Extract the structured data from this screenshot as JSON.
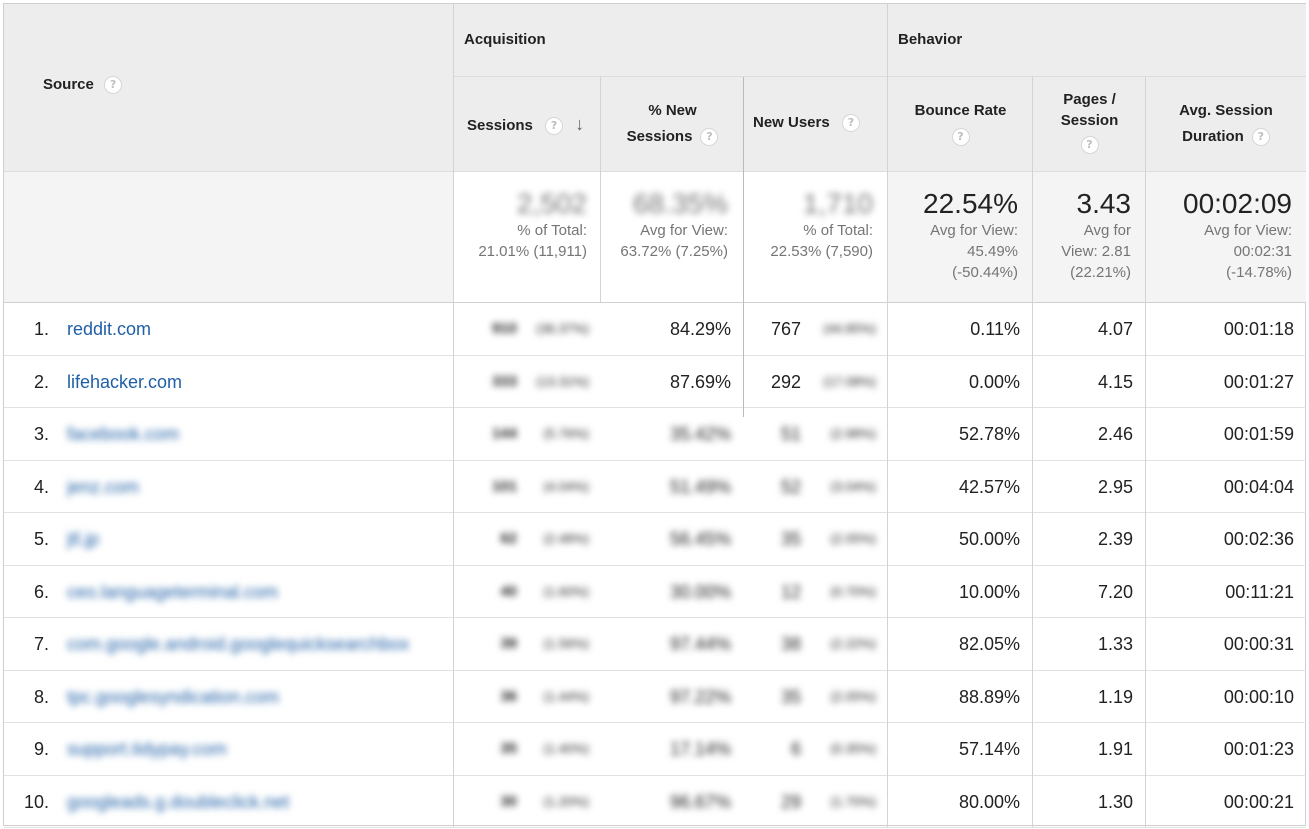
{
  "header": {
    "source_label": "Source",
    "acquisition_label": "Acquisition",
    "behavior_label": "Behavior",
    "help_glyph": "?",
    "sort_glyph": "↓",
    "columns": {
      "sessions": "Sessions",
      "new_sessions_line1": "% New",
      "new_sessions_line2": "Sessions",
      "new_users": "New Users",
      "bounce_rate": "Bounce Rate",
      "pages_line1": "Pages /",
      "pages_line2": "Session",
      "duration_line1": "Avg. Session",
      "duration_line2": "Duration"
    }
  },
  "totals": {
    "sessions": {
      "value": "2,502",
      "line1": "% of Total:",
      "line2": "21.01% (11,911)"
    },
    "new_sessions": {
      "value": "68.35%",
      "line1": "Avg for View:",
      "line2": "63.72% (7.25%)"
    },
    "new_users": {
      "value": "1,710",
      "line1": "% of Total:",
      "line2": "22.53% (7,590)"
    },
    "bounce_rate": {
      "value": "22.54%",
      "line1": "Avg for View:",
      "line2": "45.49%",
      "line3": "(-50.44%)"
    },
    "pages": {
      "value": "3.43",
      "line1": "Avg for",
      "line2": "View: 2.81",
      "line3": "(22.21%)"
    },
    "duration": {
      "value": "00:02:09",
      "line1": "Avg for View:",
      "line2": "00:02:31",
      "line3": "(-14.78%)"
    }
  },
  "rows": [
    {
      "num": "1.",
      "source": "reddit.com",
      "sessions": "910",
      "sessions_pct": "(36.37%)",
      "new_sessions": "84.29%",
      "new_users": "767",
      "new_users_pct": "(44.85%)",
      "bounce": "0.11%",
      "pages": "4.07",
      "duration": "00:01:18"
    },
    {
      "num": "2.",
      "source": "lifehacker.com",
      "sessions": "333",
      "sessions_pct": "(13.31%)",
      "new_sessions": "87.69%",
      "new_users": "292",
      "new_users_pct": "(17.08%)",
      "bounce": "0.00%",
      "pages": "4.15",
      "duration": "00:01:27"
    },
    {
      "num": "3.",
      "source": "facebook.com",
      "sessions": "144",
      "sessions_pct": "(5.76%)",
      "new_sessions": "35.42%",
      "new_users": "51",
      "new_users_pct": "(2.98%)",
      "bounce": "52.78%",
      "pages": "2.46",
      "duration": "00:01:59"
    },
    {
      "num": "4.",
      "source": "jenz.com",
      "sessions": "101",
      "sessions_pct": "(4.04%)",
      "new_sessions": "51.49%",
      "new_users": "52",
      "new_users_pct": "(3.04%)",
      "bounce": "42.57%",
      "pages": "2.95",
      "duration": "00:04:04"
    },
    {
      "num": "5.",
      "source": "jtl.jp",
      "sessions": "62",
      "sessions_pct": "(2.48%)",
      "new_sessions": "56.45%",
      "new_users": "35",
      "new_users_pct": "(2.05%)",
      "bounce": "50.00%",
      "pages": "2.39",
      "duration": "00:02:36"
    },
    {
      "num": "6.",
      "source": "ceo.languageterminal.com",
      "sessions": "40",
      "sessions_pct": "(1.60%)",
      "new_sessions": "30.00%",
      "new_users": "12",
      "new_users_pct": "(0.70%)",
      "bounce": "10.00%",
      "pages": "7.20",
      "duration": "00:11:21"
    },
    {
      "num": "7.",
      "source": "com.google.android.googlequicksearchbox",
      "sessions": "39",
      "sessions_pct": "(1.56%)",
      "new_sessions": "97.44%",
      "new_users": "38",
      "new_users_pct": "(2.22%)",
      "bounce": "82.05%",
      "pages": "1.33",
      "duration": "00:00:31"
    },
    {
      "num": "8.",
      "source": "tpc.googlesyndication.com",
      "sessions": "36",
      "sessions_pct": "(1.44%)",
      "new_sessions": "97.22%",
      "new_users": "35",
      "new_users_pct": "(2.05%)",
      "bounce": "88.89%",
      "pages": "1.19",
      "duration": "00:00:10"
    },
    {
      "num": "9.",
      "source": "support.tidypay.com",
      "sessions": "35",
      "sessions_pct": "(1.40%)",
      "new_sessions": "17.14%",
      "new_users": "6",
      "new_users_pct": "(0.35%)",
      "bounce": "57.14%",
      "pages": "1.91",
      "duration": "00:01:23"
    },
    {
      "num": "10.",
      "source": "googleads.g.doubleclick.net",
      "sessions": "30",
      "sessions_pct": "(1.20%)",
      "new_sessions": "96.67%",
      "new_users": "29",
      "new_users_pct": "(1.70%)",
      "bounce": "80.00%",
      "pages": "1.30",
      "duration": "00:00:21"
    }
  ]
}
